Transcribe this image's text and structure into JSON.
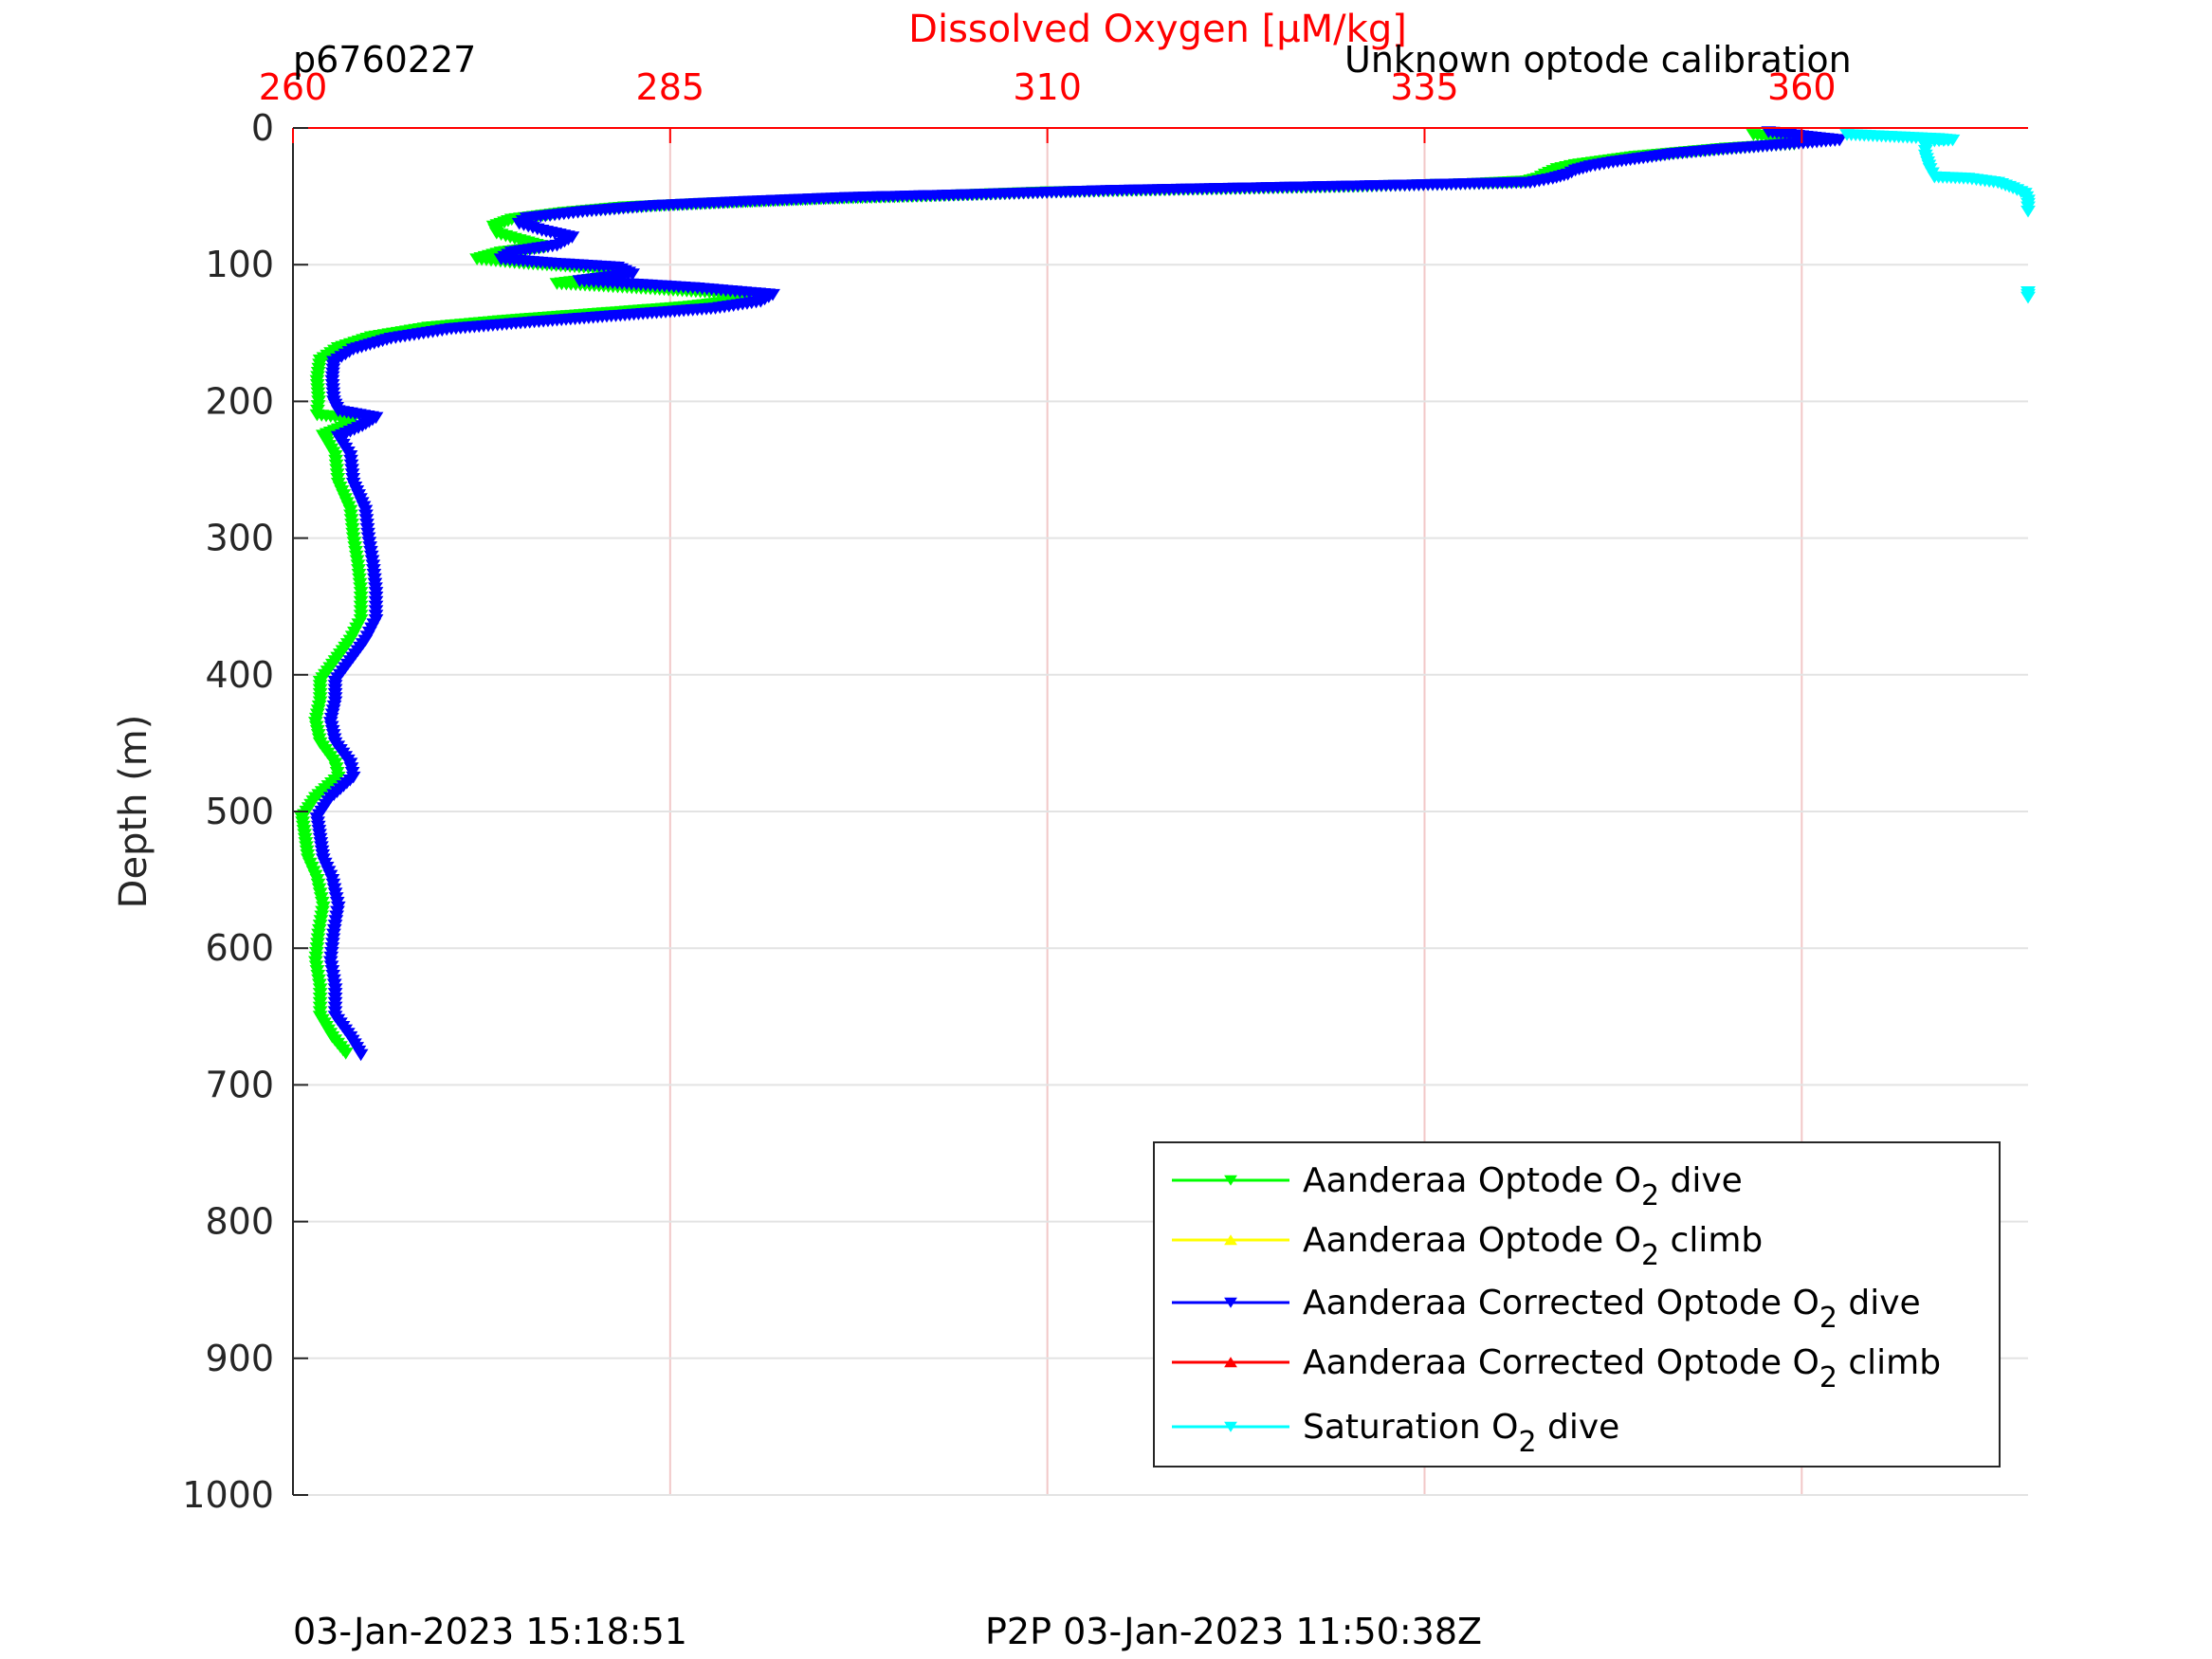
{
  "chart_data": {
    "type": "line",
    "title": "Dissolved Oxygen [μM/kg]",
    "title_left": "p6760227",
    "title_right": "Unknown optode calibration",
    "xlabel": "Dissolved Oxygen [μM/kg]",
    "ylabel": "Depth (m)",
    "xlim": [
      260,
      375
    ],
    "ylim": [
      0,
      1000
    ],
    "y_reversed": true,
    "x_axis_position": "top",
    "x_ticks": [
      260,
      285,
      310,
      335,
      360
    ],
    "y_ticks": [
      0,
      100,
      200,
      300,
      400,
      500,
      600,
      700,
      800,
      900,
      1000
    ],
    "grid": true,
    "legend_position": "bottom-right",
    "footer_left": "03-Jan-2023 15:18:51",
    "footer_center": "P2P 03-Jan-2023 11:50:38Z",
    "series": [
      {
        "name": "Aanderaa Optode O2 dive",
        "legend_main": "Aanderaa Optode O",
        "legend_sub": "2",
        "legend_tail": " dive",
        "color": "#00ff00",
        "marker": "triangle-down",
        "points": [
          [
            356.8,
            5
          ],
          [
            359,
            8
          ],
          [
            359.5,
            12
          ],
          [
            355,
            15
          ],
          [
            352,
            18
          ],
          [
            349,
            21
          ],
          [
            347,
            24
          ],
          [
            345,
            27
          ],
          [
            343.8,
            30
          ],
          [
            343,
            34
          ],
          [
            342.5,
            37
          ],
          [
            341.8,
            39
          ],
          [
            338,
            41
          ],
          [
            330,
            43
          ],
          [
            320,
            45
          ],
          [
            310,
            47
          ],
          [
            302,
            50
          ],
          [
            295,
            52
          ],
          [
            288,
            55
          ],
          [
            282,
            58
          ],
          [
            278,
            62
          ],
          [
            274.5,
            67
          ],
          [
            273.3,
            72
          ],
          [
            273.5,
            77
          ],
          [
            275,
            82
          ],
          [
            276.7,
            87
          ],
          [
            273.8,
            91
          ],
          [
            272.2,
            96
          ],
          [
            275,
            99
          ],
          [
            280.5,
            103
          ],
          [
            281.8,
            108
          ],
          [
            277.5,
            114
          ],
          [
            284,
            118
          ],
          [
            290,
            122
          ],
          [
            290,
            126
          ],
          [
            286,
            131
          ],
          [
            280,
            136
          ],
          [
            274,
            141
          ],
          [
            269,
            146
          ],
          [
            265.2,
            153
          ],
          [
            263,
            161
          ],
          [
            261.8,
            170
          ],
          [
            261.6,
            185
          ],
          [
            261.7,
            200
          ],
          [
            261.6,
            210
          ],
          [
            264,
            213
          ],
          [
            263.5,
            218
          ],
          [
            262,
            225
          ],
          [
            262.8,
            240
          ],
          [
            263,
            260
          ],
          [
            263.8,
            280
          ],
          [
            264,
            300
          ],
          [
            264.3,
            320
          ],
          [
            264.5,
            340
          ],
          [
            264.5,
            360
          ],
          [
            263.8,
            375
          ],
          [
            262.8,
            390
          ],
          [
            261.8,
            405
          ],
          [
            261.8,
            420
          ],
          [
            261.5,
            435
          ],
          [
            261.8,
            450
          ],
          [
            262.8,
            465
          ],
          [
            263,
            475
          ],
          [
            261.5,
            490
          ],
          [
            260.6,
            505
          ],
          [
            260.8,
            520
          ],
          [
            261,
            535
          ],
          [
            261.6,
            550
          ],
          [
            262,
            570
          ],
          [
            261.7,
            590
          ],
          [
            261.5,
            610
          ],
          [
            261.8,
            630
          ],
          [
            261.8,
            650
          ],
          [
            262.6,
            665
          ],
          [
            263.5,
            677
          ]
        ]
      },
      {
        "name": "Aanderaa Optode O2 climb",
        "legend_main": "Aanderaa Optode O",
        "legend_sub": "2",
        "legend_tail": " climb",
        "color": "#ffff00",
        "marker": "triangle-up",
        "points": []
      },
      {
        "name": "Aanderaa Corrected Optode O2 dive",
        "legend_main": "Aanderaa Corrected Optode O",
        "legend_sub": "2",
        "legend_tail": " dive",
        "color": "#0000ff",
        "marker": "triangle-down",
        "points": [
          [
            357.8,
            3
          ],
          [
            360,
            6
          ],
          [
            362.5,
            9
          ],
          [
            358,
            13
          ],
          [
            354.5,
            16
          ],
          [
            351.5,
            19
          ],
          [
            349.5,
            22
          ],
          [
            347.5,
            25
          ],
          [
            346,
            28
          ],
          [
            345,
            31
          ],
          [
            344.5,
            34
          ],
          [
            343.5,
            37
          ],
          [
            342,
            40
          ],
          [
            334,
            42
          ],
          [
            324,
            44
          ],
          [
            314,
            46
          ],
          [
            305,
            49
          ],
          [
            297,
            51
          ],
          [
            290,
            54
          ],
          [
            284,
            57
          ],
          [
            279.5,
            61
          ],
          [
            275.5,
            66
          ],
          [
            275,
            70
          ],
          [
            276.5,
            75
          ],
          [
            278.5,
            80
          ],
          [
            277.5,
            86
          ],
          [
            274.5,
            91
          ],
          [
            273.8,
            96
          ],
          [
            277,
            99
          ],
          [
            281.5,
            102
          ],
          [
            282.5,
            107
          ],
          [
            279,
            112
          ],
          [
            286.5,
            117
          ],
          [
            291.8,
            122
          ],
          [
            291,
            127
          ],
          [
            288,
            132
          ],
          [
            282,
            137
          ],
          [
            276,
            142
          ],
          [
            270.5,
            147
          ],
          [
            266.5,
            154
          ],
          [
            264,
            162
          ],
          [
            262.7,
            171
          ],
          [
            262.6,
            185
          ],
          [
            262.7,
            200
          ],
          [
            263,
            207
          ],
          [
            265.5,
            212
          ],
          [
            264.6,
            218
          ],
          [
            263,
            226
          ],
          [
            263.8,
            240
          ],
          [
            264,
            260
          ],
          [
            264.8,
            280
          ],
          [
            265,
            300
          ],
          [
            265.3,
            320
          ],
          [
            265.5,
            340
          ],
          [
            265.5,
            360
          ],
          [
            264.8,
            375
          ],
          [
            263.8,
            390
          ],
          [
            262.8,
            405
          ],
          [
            262.8,
            420
          ],
          [
            262.5,
            435
          ],
          [
            262.8,
            450
          ],
          [
            263.8,
            465
          ],
          [
            264,
            475
          ],
          [
            262.5,
            490
          ],
          [
            261.6,
            505
          ],
          [
            261.8,
            520
          ],
          [
            262,
            535
          ],
          [
            262.6,
            550
          ],
          [
            263,
            570
          ],
          [
            262.7,
            590
          ],
          [
            262.5,
            610
          ],
          [
            262.8,
            630
          ],
          [
            262.8,
            650
          ],
          [
            263.8,
            665
          ],
          [
            264.5,
            678
          ]
        ]
      },
      {
        "name": "Aanderaa Corrected Optode O2 climb",
        "legend_main": "Aanderaa Corrected Optode O",
        "legend_sub": "2",
        "legend_tail": " climb",
        "color": "#ff0000",
        "marker": "triangle-up",
        "points": []
      },
      {
        "name": "Saturation O2 dive",
        "legend_main": "Saturation O",
        "legend_sub": "2",
        "legend_tail": " dive",
        "color": "#00ffff",
        "marker": "triangle-down",
        "points": [
          [
            363,
            5
          ],
          [
            365,
            6
          ],
          [
            367,
            7
          ],
          [
            369,
            8
          ],
          [
            370,
            9
          ],
          [
            368.2,
            10
          ],
          [
            368.2,
            20
          ],
          [
            368.5,
            30
          ],
          [
            368.8,
            36
          ],
          [
            371,
            37
          ],
          [
            373,
            40
          ],
          [
            374,
            44
          ],
          [
            374.8,
            48
          ],
          [
            375,
            53
          ],
          [
            375,
            58
          ],
          [
            375,
            61
          ]
        ],
        "points_extra": [
          [
            375,
            120
          ],
          [
            375,
            124
          ]
        ]
      }
    ]
  }
}
